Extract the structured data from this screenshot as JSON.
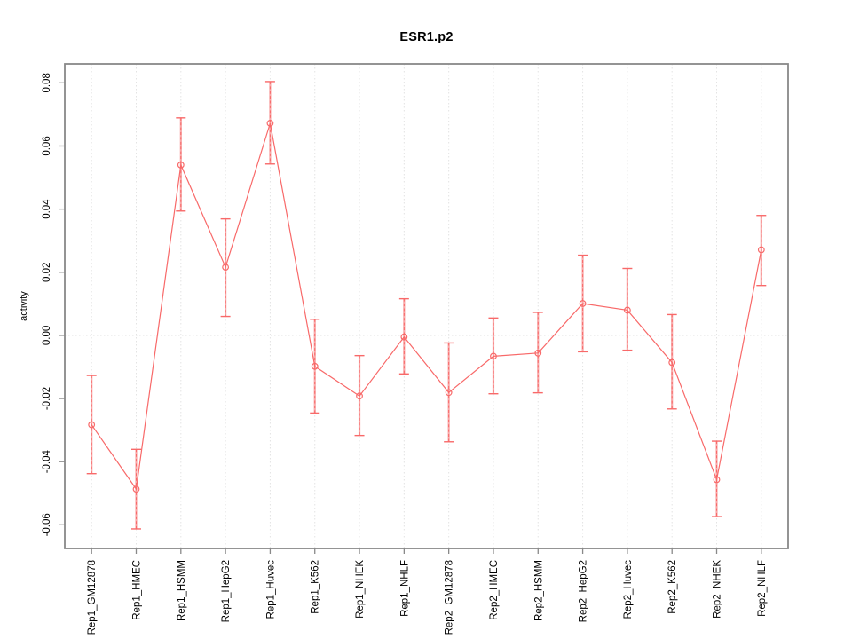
{
  "chart_data": {
    "type": "line",
    "title": "ESR1.p2",
    "xlabel": "",
    "ylabel": "activity",
    "categories": [
      "Rep1_GM12878",
      "Rep1_HMEC",
      "Rep1_HSMM",
      "Rep1_HepG2",
      "Rep1_Huvec",
      "Rep1_K562",
      "Rep1_NHEK",
      "Rep1_NHLF",
      "Rep2_GM12878",
      "Rep2_HMEC",
      "Rep2_HSMM",
      "Rep2_HepG2",
      "Rep2_Huvec",
      "Rep2_K562",
      "Rep2_NHEK",
      "Rep2_NHLF"
    ],
    "series": [
      {
        "name": "activity",
        "values": [
          -0.0283,
          -0.0487,
          0.054,
          0.0216,
          0.0672,
          -0.0098,
          -0.0192,
          -0.0005,
          -0.0181,
          -0.0066,
          -0.0056,
          0.0101,
          0.008,
          -0.0086,
          -0.0457,
          0.0271
        ],
        "error_low": [
          -0.0438,
          -0.0613,
          0.0394,
          0.006,
          0.0543,
          -0.0246,
          -0.0317,
          -0.0122,
          -0.0337,
          -0.0185,
          -0.0182,
          -0.0052,
          -0.0047,
          -0.0233,
          -0.0574,
          0.0158
        ],
        "error_high": [
          -0.0127,
          -0.0361,
          0.0689,
          0.0369,
          0.0804,
          0.0051,
          -0.0064,
          0.0116,
          -0.0024,
          0.0055,
          0.0073,
          0.0254,
          0.0212,
          0.0066,
          -0.0335,
          0.038
        ]
      }
    ],
    "yticks": [
      -0.06,
      -0.04,
      -0.02,
      0.0,
      0.02,
      0.04,
      0.06,
      0.08
    ],
    "ylim": [
      -0.0675,
      0.086
    ],
    "xlim": [
      0.4,
      16.6
    ],
    "grid": "vertical dotted at each category, dotted horizontal line at 0",
    "legend": "none",
    "marker": "open-circle",
    "colors": {
      "line": "#f86969",
      "error_bar_underlay": "#f8a8a8",
      "grid_line": "#e3e3e3",
      "zero_line": "#d6d6d6",
      "frame": "#898989",
      "text": "#000000"
    }
  }
}
